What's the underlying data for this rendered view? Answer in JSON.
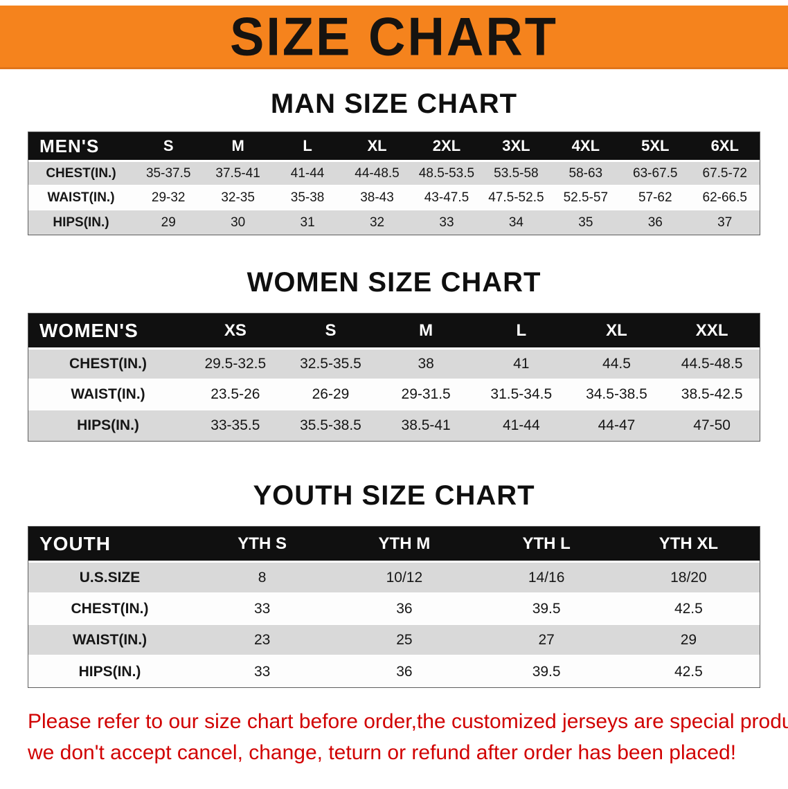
{
  "banner": {
    "title": "SIZE CHART"
  },
  "colors": {
    "banner_bg": "#f5831d",
    "header_bg": "#101010",
    "row_alt": "#d9d9d9",
    "footer_text": "#d10000"
  },
  "sections": [
    {
      "heading": "MAN SIZE CHART",
      "table": {
        "header": [
          "MEN'S",
          "S",
          "M",
          "L",
          "XL",
          "2XL",
          "3XL",
          "4XL",
          "5XL",
          "6XL"
        ],
        "rows": [
          {
            "label": "CHEST(IN.)",
            "values": [
              "35-37.5",
              "37.5-41",
              "41-44",
              "44-48.5",
              "48.5-53.5",
              "53.5-58",
              "58-63",
              "63-67.5",
              "67.5-72"
            ]
          },
          {
            "label": "WAIST(IN.)",
            "values": [
              "29-32",
              "32-35",
              "35-38",
              "38-43",
              "43-47.5",
              "47.5-52.5",
              "52.5-57",
              "57-62",
              "62-66.5"
            ]
          },
          {
            "label": "HIPS(IN.)",
            "values": [
              "29",
              "30",
              "31",
              "32",
              "33",
              "34",
              "35",
              "36",
              "37"
            ]
          }
        ]
      }
    },
    {
      "heading": "WOMEN SIZE CHART",
      "table": {
        "header": [
          "WOMEN'S",
          "XS",
          "S",
          "M",
          "L",
          "XL",
          "XXL"
        ],
        "rows": [
          {
            "label": "CHEST(IN.)",
            "values": [
              "29.5-32.5",
              "32.5-35.5",
              "38",
              "41",
              "44.5",
              "44.5-48.5"
            ]
          },
          {
            "label": "WAIST(IN.)",
            "values": [
              "23.5-26",
              "26-29",
              "29-31.5",
              "31.5-34.5",
              "34.5-38.5",
              "38.5-42.5"
            ]
          },
          {
            "label": "HIPS(IN.)",
            "values": [
              "33-35.5",
              "35.5-38.5",
              "38.5-41",
              "41-44",
              "44-47",
              "47-50"
            ]
          }
        ]
      }
    },
    {
      "heading": "YOUTH SIZE CHART",
      "table": {
        "header": [
          "YOUTH",
          "YTH S",
          "YTH M",
          "YTH L",
          "YTH XL"
        ],
        "rows": [
          {
            "label": "U.S.SIZE",
            "values": [
              "8",
              "10/12",
              "14/16",
              "18/20"
            ]
          },
          {
            "label": "CHEST(IN.)",
            "values": [
              "33",
              "36",
              "39.5",
              "42.5"
            ]
          },
          {
            "label": "WAIST(IN.)",
            "values": [
              "23",
              "25",
              "27",
              "29"
            ]
          },
          {
            "label": "HIPS(IN.)",
            "values": [
              "33",
              "36",
              "39.5",
              "42.5"
            ]
          }
        ]
      }
    }
  ],
  "footer": {
    "line1": "Please refer to our size chart before order,the customized jerseys are special products,",
    "line2": "we don't accept cancel, change, teturn or refund after order has been placed!"
  }
}
